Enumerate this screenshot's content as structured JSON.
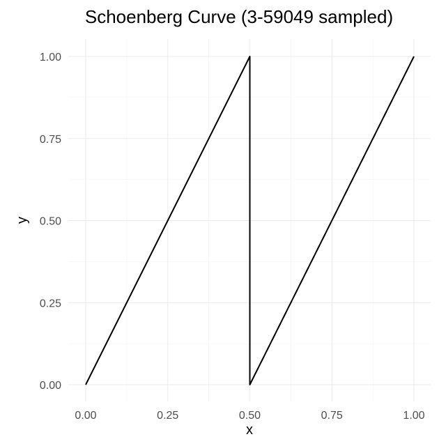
{
  "chart_data": {
    "type": "line",
    "title": "Schoenberg Curve (3-59049 sampled)",
    "xlabel": "x",
    "ylabel": "y",
    "xlim": [
      0,
      1
    ],
    "ylim": [
      0,
      1
    ],
    "grid": true,
    "legend": "none",
    "x_ticks": [
      0,
      0.25,
      0.5,
      0.75,
      1
    ],
    "x_tick_labels": [
      "0.00",
      "0.25",
      "0.50",
      "0.75",
      "1.00"
    ],
    "y_ticks": [
      0,
      0.25,
      0.5,
      0.75,
      1
    ],
    "y_tick_labels": [
      "0.00",
      "0.25",
      "0.50",
      "0.75",
      "1.00"
    ],
    "series": [
      {
        "name": "curve",
        "color": "#000000",
        "x": [
          0,
          0.5,
          0.5,
          1
        ],
        "y": [
          0,
          1,
          0,
          1
        ]
      }
    ]
  }
}
